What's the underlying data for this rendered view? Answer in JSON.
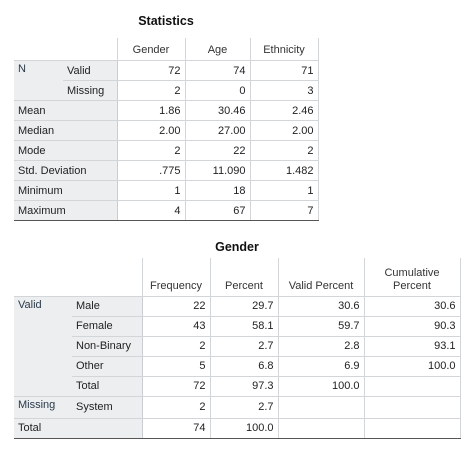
{
  "statistics": {
    "title": "Statistics",
    "columns": [
      "Gender",
      "Age",
      "Ethnicity"
    ],
    "n": {
      "label": "N",
      "rows": [
        {
          "label": "Valid",
          "values": [
            "72",
            "74",
            "71"
          ]
        },
        {
          "label": "Missing",
          "values": [
            "2",
            "0",
            "3"
          ]
        }
      ]
    },
    "rows": [
      {
        "label": "Mean",
        "values": [
          "1.86",
          "30.46",
          "2.46"
        ]
      },
      {
        "label": "Median",
        "values": [
          "2.00",
          "27.00",
          "2.00"
        ]
      },
      {
        "label": "Mode",
        "values": [
          "2",
          "22",
          "2"
        ]
      },
      {
        "label": "Std. Deviation",
        "values": [
          ".775",
          "11.090",
          "1.482"
        ]
      },
      {
        "label": "Minimum",
        "values": [
          "1",
          "18",
          "1"
        ]
      },
      {
        "label": "Maximum",
        "values": [
          "4",
          "67",
          "7"
        ]
      }
    ]
  },
  "frequencies": {
    "title": "Gender",
    "columns": [
      "Frequency",
      "Percent",
      "Valid Percent",
      "Cumulative Percent"
    ],
    "groups": [
      {
        "label": "Valid",
        "rows": [
          {
            "label": "Male",
            "values": [
              "22",
              "29.7",
              "30.6",
              "30.6"
            ]
          },
          {
            "label": "Female",
            "values": [
              "43",
              "58.1",
              "59.7",
              "90.3"
            ]
          },
          {
            "label": "Non-Binary",
            "values": [
              "2",
              "2.7",
              "2.8",
              "93.1"
            ]
          },
          {
            "label": "Other",
            "values": [
              "5",
              "6.8",
              "6.9",
              "100.0"
            ]
          },
          {
            "label": "Total",
            "values": [
              "72",
              "97.3",
              "100.0"
            ]
          }
        ]
      },
      {
        "label": "Missing",
        "rows": [
          {
            "label": "System",
            "values": [
              "2",
              "2.7"
            ]
          }
        ]
      }
    ],
    "total": {
      "label": "Total",
      "values": [
        "74",
        "100.0"
      ]
    }
  }
}
